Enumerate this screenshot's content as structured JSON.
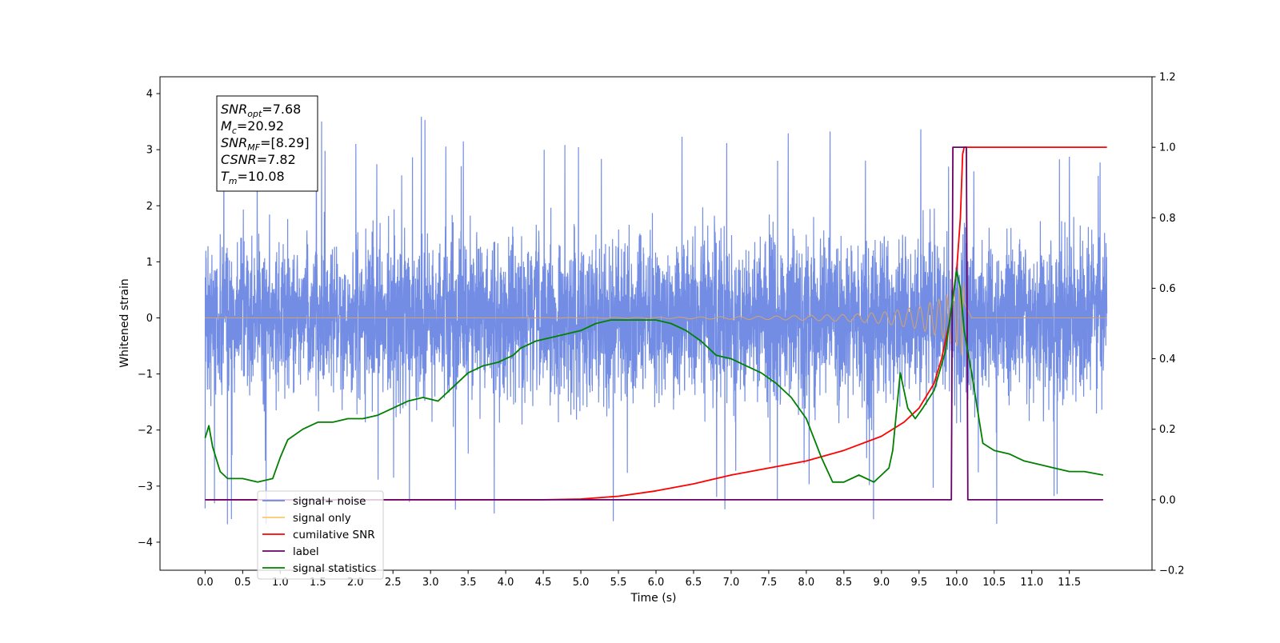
{
  "chart_data": {
    "type": "line",
    "xlabel": "Time (s)",
    "ylabel_left": "Whitened strain",
    "ylabel_right": "",
    "xlim": [
      -0.6,
      12.6
    ],
    "ylim_left": [
      -4.5,
      4.3
    ],
    "ylim_right": [
      -0.2,
      1.2
    ],
    "x_ticks": [
      "0.0",
      "0.5",
      "1.0",
      "1.5",
      "2.0",
      "2.5",
      "3.0",
      "3.5",
      "4.0",
      "4.5",
      "5.0",
      "5.5",
      "6.0",
      "6.5",
      "7.0",
      "7.5",
      "8.0",
      "8.5",
      "9.0",
      "9.5",
      "10.0",
      "10.5",
      "11.0",
      "11.5"
    ],
    "y_ticks_left": [
      "4",
      "3",
      "2",
      "1",
      "0",
      "−1",
      "−2",
      "−3",
      "−4"
    ],
    "y_ticks_right": [
      "1.2",
      "1.0",
      "0.8",
      "0.6",
      "0.4",
      "0.2",
      "0.0",
      "−0.2"
    ],
    "grid": false,
    "legend_position": "lower-left",
    "stats_box": [
      {
        "main": "SNR",
        "sub": "opt",
        "rest": "=7.68"
      },
      {
        "main": "M",
        "sub": "c",
        "rest": "=20.92"
      },
      {
        "main": "SNR",
        "sub": "MF",
        "rest": "=[8.29]"
      },
      {
        "main": "CSNR",
        "sub": "",
        "rest": "=7.82"
      },
      {
        "main": "T",
        "sub": "m",
        "rest": "=10.08"
      }
    ],
    "legend": [
      {
        "label": "signal+ noise",
        "color": "#6b87e3"
      },
      {
        "label": "signal only",
        "color": "#ffc86e"
      },
      {
        "label": "cumilative SNR",
        "color": "#ff0000"
      },
      {
        "label": "label",
        "color": "#6a006a"
      },
      {
        "label": "signal statistics",
        "color": "#008000"
      }
    ],
    "series": [
      {
        "name": "signal+ noise",
        "axis": "left",
        "color": "#6b87e3",
        "x_range": [
          0.0,
          12.0
        ],
        "typical_amplitude": 1.5,
        "peak_range": [
          -4.1,
          3.9
        ]
      },
      {
        "name": "signal only",
        "axis": "left",
        "color": "#d2a26e",
        "x_range": [
          0.0,
          12.0
        ],
        "envelope": {
          "x": [
            0.0,
            4.0,
            6.0,
            7.5,
            8.5,
            9.0,
            9.5,
            9.8,
            10.0,
            10.08,
            10.2,
            12.0
          ],
          "amp": [
            0.0,
            0.0,
            0.01,
            0.03,
            0.06,
            0.1,
            0.2,
            0.35,
            0.5,
            0.7,
            0.0,
            0.0
          ]
        }
      },
      {
        "name": "cumilative SNR",
        "axis": "right",
        "color": "#ff0000",
        "x": [
          0.0,
          4.5,
          5.0,
          5.5,
          6.0,
          6.5,
          7.0,
          7.5,
          8.0,
          8.5,
          9.0,
          9.3,
          9.5,
          9.7,
          9.8,
          9.9,
          10.0,
          10.05,
          10.08,
          10.1,
          12.0
        ],
        "y": [
          0.0,
          0.0,
          0.002,
          0.01,
          0.025,
          0.045,
          0.07,
          0.09,
          0.11,
          0.14,
          0.18,
          0.22,
          0.26,
          0.33,
          0.4,
          0.5,
          0.65,
          0.8,
          0.98,
          1.0,
          1.0
        ]
      },
      {
        "name": "label",
        "axis": "right",
        "color": "#6a006a",
        "x": [
          0.0,
          9.93,
          9.95,
          10.13,
          10.15,
          11.95
        ],
        "y": [
          0.0,
          0.0,
          1.0,
          1.0,
          0.0,
          0.0
        ]
      },
      {
        "name": "signal statistics",
        "axis": "right",
        "color": "#008000",
        "x": [
          0.0,
          0.05,
          0.1,
          0.2,
          0.3,
          0.5,
          0.7,
          0.9,
          1.0,
          1.1,
          1.3,
          1.5,
          1.7,
          1.9,
          2.1,
          2.3,
          2.5,
          2.7,
          2.9,
          3.1,
          3.3,
          3.5,
          3.7,
          3.9,
          4.1,
          4.2,
          4.3,
          4.4,
          4.6,
          4.8,
          5.0,
          5.2,
          5.4,
          5.6,
          5.8,
          6.0,
          6.2,
          6.4,
          6.6,
          6.8,
          7.0,
          7.2,
          7.4,
          7.6,
          7.8,
          8.0,
          8.2,
          8.35,
          8.5,
          8.7,
          8.9,
          9.0,
          9.1,
          9.15,
          9.25,
          9.35,
          9.45,
          9.55,
          9.7,
          9.85,
          10.0,
          10.05,
          10.1,
          10.2,
          10.35,
          10.5,
          10.7,
          10.9,
          11.1,
          11.3,
          11.5,
          11.7,
          11.95
        ],
        "y": [
          0.175,
          0.21,
          0.15,
          0.08,
          0.06,
          0.06,
          0.05,
          0.06,
          0.12,
          0.17,
          0.2,
          0.22,
          0.22,
          0.23,
          0.23,
          0.24,
          0.26,
          0.28,
          0.29,
          0.28,
          0.32,
          0.36,
          0.38,
          0.39,
          0.41,
          0.43,
          0.44,
          0.45,
          0.46,
          0.47,
          0.48,
          0.5,
          0.51,
          0.51,
          0.51,
          0.51,
          0.5,
          0.48,
          0.45,
          0.41,
          0.4,
          0.38,
          0.36,
          0.33,
          0.29,
          0.23,
          0.12,
          0.05,
          0.05,
          0.07,
          0.05,
          0.07,
          0.09,
          0.14,
          0.36,
          0.26,
          0.23,
          0.26,
          0.31,
          0.42,
          0.65,
          0.6,
          0.48,
          0.36,
          0.16,
          0.14,
          0.13,
          0.11,
          0.1,
          0.09,
          0.08,
          0.08,
          0.07
        ]
      }
    ]
  }
}
